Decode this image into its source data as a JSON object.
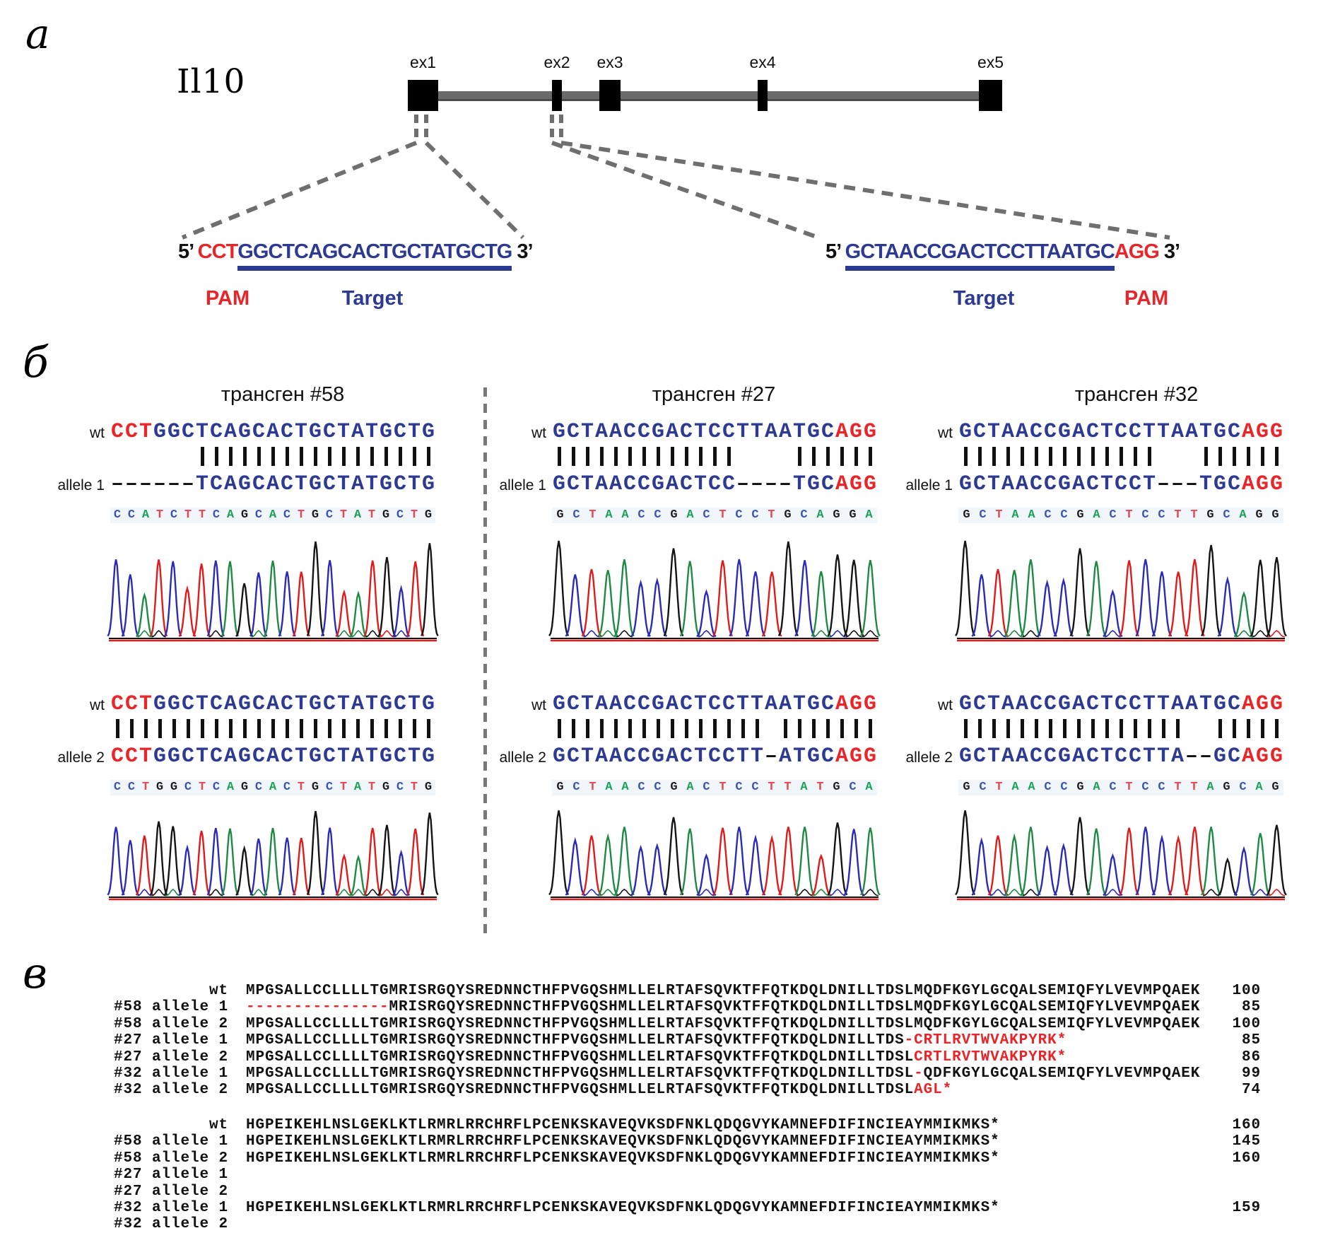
{
  "colors": {
    "seq_blue": "#2d3a92",
    "seq_red": "#e8262a",
    "protein_red": "#e8262a",
    "gene_line_gray": "#6a6a6a",
    "dash_gray": "#6f6f6f",
    "base_letter_colors": {
      "A": "#1ba158",
      "C": "#3b55b5",
      "G": "#1d1d1d",
      "T": "#e8474f"
    },
    "trace_colors": {
      "A": "#1f8a44",
      "C": "#2b2bb5",
      "G": "#151515",
      "T": "#e01b1b"
    }
  },
  "panel_a": {
    "label": "а",
    "gene_name": "Il10",
    "exon_labels": [
      "ex1",
      "ex2",
      "ex3",
      "ex4",
      "ex5"
    ],
    "left_site": {
      "five": "5’ ",
      "pam": "CCT",
      "target": "GGCTCAGCACTGCTATGCTG",
      "three": " 3’",
      "pam_label": "PAM",
      "target_label": "Target"
    },
    "right_site": {
      "five": "5’ ",
      "target": "GCTAACCGACTCCTTAATGC",
      "pam": "AGG",
      "three": " 3’",
      "pam_label": "PAM",
      "target_label": "Target"
    }
  },
  "panel_b": {
    "label": "б",
    "columns": [
      {
        "title": "трансген #58",
        "top": {
          "wt_label": "wt",
          "wt_parts": [
            {
              "t": "CCT",
              "c": "red"
            },
            {
              "t": "GGCTCAGCACTGCTATGCTG",
              "c": "blue"
            }
          ],
          "bars": "00000011111111111111111",
          "allele_label": "allele 1",
          "allele_parts": [
            {
              "t": "------",
              "c": "black"
            },
            {
              "t": "TCAGCACTGCTATGCTG",
              "c": "blue"
            }
          ],
          "chromatogram": "CCATCTTCAGCACTGCTATGCTG"
        },
        "bottom": {
          "wt_label": "wt",
          "wt_parts": [
            {
              "t": "CCT",
              "c": "red"
            },
            {
              "t": "GGCTCAGCACTGCTATGCTG",
              "c": "blue"
            }
          ],
          "bars": "11111111111111111111111",
          "allele_label": "allele 2",
          "allele_parts": [
            {
              "t": "CCT",
              "c": "red"
            },
            {
              "t": "GGCTCAGCACTGCTATGCTG",
              "c": "blue"
            }
          ],
          "chromatogram": "CCTGGCTCAGCACTGCTATGCTG"
        }
      },
      {
        "title": "трансген #27",
        "top": {
          "wt_label": "wt",
          "wt_parts": [
            {
              "t": "GCTAACCGACTCCTTAATGC",
              "c": "blue"
            },
            {
              "t": "AGG",
              "c": "red"
            }
          ],
          "bars": "11111111111110000111111",
          "allele_label": "allele 1",
          "allele_parts": [
            {
              "t": "GCTAACCGACTCC",
              "c": "blue"
            },
            {
              "t": "----",
              "c": "black"
            },
            {
              "t": "TGC",
              "c": "blue"
            },
            {
              "t": "AGG",
              "c": "red"
            }
          ],
          "chromatogram": "GCTAACCGACTCCTGCAGGA"
        },
        "bottom": {
          "wt_label": "wt",
          "wt_parts": [
            {
              "t": "GCTAACCGACTCCTTAATGC",
              "c": "blue"
            },
            {
              "t": "AGG",
              "c": "red"
            }
          ],
          "bars": "11111111111111101111111",
          "allele_label": "allele 2",
          "allele_parts": [
            {
              "t": "GCTAACCGACTCCTT",
              "c": "blue"
            },
            {
              "t": "-",
              "c": "black"
            },
            {
              "t": "ATGC",
              "c": "blue"
            },
            {
              "t": "AGG",
              "c": "red"
            }
          ],
          "chromatogram": "GCTAACCGACTCCTTATGCA"
        }
      },
      {
        "title": "трансген #32",
        "top": {
          "wt_label": "wt",
          "wt_parts": [
            {
              "t": "GCTAACCGACTCCTTAATGC",
              "c": "blue"
            },
            {
              "t": "AGG",
              "c": "red"
            }
          ],
          "bars": "11111111111111000111111",
          "allele_label": "allele 1",
          "allele_parts": [
            {
              "t": "GCTAACCGACTCCT",
              "c": "blue"
            },
            {
              "t": "---",
              "c": "black"
            },
            {
              "t": "TGC",
              "c": "blue"
            },
            {
              "t": "AGG",
              "c": "red"
            }
          ],
          "chromatogram": "GCTAACCGACTCCTTGCAGG"
        },
        "bottom": {
          "wt_label": "wt",
          "wt_parts": [
            {
              "t": "GCTAACCGACTCCTTAATGC",
              "c": "blue"
            },
            {
              "t": "AGG",
              "c": "red"
            }
          ],
          "bars": "11111111111111110011111",
          "allele_label": "allele 2",
          "allele_parts": [
            {
              "t": "GCTAACCGACTCCTTA",
              "c": "blue"
            },
            {
              "t": "--",
              "c": "black"
            },
            {
              "t": "GC",
              "c": "blue"
            },
            {
              "t": "AGG",
              "c": "red"
            }
          ],
          "chromatogram": "GCTAACCGACTCCTTAGCAG"
        }
      }
    ]
  },
  "panel_c": {
    "label": "в",
    "block1": [
      {
        "label": "wt",
        "parts": [
          {
            "t": "MPGSALLCCLLLLTGMRISRGQYSREDNNCTHFPVGQSHMLLELRTAFSQVKTFFQTKDQLDNILLTDSLMQDFKGYLGCQALSEMIQFYLVEVMPQAEK",
            "c": "k"
          }
        ],
        "num": "100"
      },
      {
        "label": "#58 allele 1",
        "parts": [
          {
            "t": "---------------",
            "c": "r"
          },
          {
            "t": "MRISRGQYSREDNNCTHFPVGQSHMLLELRTAFSQVKTFFQTKDQLDNILLTDSLMQDFKGYLGCQALSEMIQFYLVEVMPQAEK",
            "c": "k"
          }
        ],
        "num": "85"
      },
      {
        "label": "#58 allele 2",
        "parts": [
          {
            "t": "MPGSALLCCLLLLTGMRISRGQYSREDNNCTHFPVGQSHMLLELRTAFSQVKTFFQTKDQLDNILLTDSLMQDFKGYLGCQALSEMIQFYLVEVMPQAEK",
            "c": "k"
          }
        ],
        "num": "100"
      },
      {
        "label": "#27 allele 1",
        "parts": [
          {
            "t": "MPGSALLCCLLLLTGMRISRGQYSREDNNCTHFPVGQSHMLLELRTAFSQVKTFFQTKDQLDNILLTDS",
            "c": "k"
          },
          {
            "t": "-CRTLRVTWVAKPYRK*",
            "c": "r"
          }
        ],
        "num": "85"
      },
      {
        "label": "#27 allele 2",
        "parts": [
          {
            "t": "MPGSALLCCLLLLTGMRISRGQYSREDNNCTHFPVGQSHMLLELRTAFSQVKTFFQTKDQLDNILLTDSL",
            "c": "k"
          },
          {
            "t": "CRTLRVTWVAKPYRK*",
            "c": "r"
          }
        ],
        "num": "86"
      },
      {
        "label": "#32 allele 1",
        "parts": [
          {
            "t": "MPGSALLCCLLLLTGMRISRGQYSREDNNCTHFPVGQSHMLLELRTAFSQVKTFFQTKDQLDNILLTDSL",
            "c": "k"
          },
          {
            "t": "-",
            "c": "r"
          },
          {
            "t": "QDFKGYLGCQALSEMIQFYLVEVMPQAEK",
            "c": "k"
          }
        ],
        "num": "99"
      },
      {
        "label": "#32 allele 2",
        "parts": [
          {
            "t": "MPGSALLCCLLLLTGMRISRGQYSREDNNCTHFPVGQSHMLLELRTAFSQVKTFFQTKDQLDNILLTDSL",
            "c": "k"
          },
          {
            "t": "AGL*",
            "c": "r"
          }
        ],
        "num": "74"
      }
    ],
    "block2": [
      {
        "label": "wt",
        "parts": [
          {
            "t": "HGPEIKEHLNSLGEKLKTLRMRLRRCHRFLPCENKSKAVEQVKSDFNKLQDQGVYKAMNEFDIFINCIEAYMMIKMKS*",
            "c": "k"
          }
        ],
        "num": "160"
      },
      {
        "label": "#58 allele 1",
        "parts": [
          {
            "t": "HGPEIKEHLNSLGEKLKTLRMRLRRCHRFLPCENKSKAVEQVKSDFNKLQDQGVYKAMNEFDIFINCIEAYMMIKMKS*",
            "c": "k"
          }
        ],
        "num": "145"
      },
      {
        "label": "#58 allele 2",
        "parts": [
          {
            "t": "HGPEIKEHLNSLGEKLKTLRMRLRRCHRFLPCENKSKAVEQVKSDFNKLQDQGVYKAMNEFDIFINCIEAYMMIKMKS*",
            "c": "k"
          }
        ],
        "num": "160"
      },
      {
        "label": "#27 allele 1",
        "parts": [],
        "num": ""
      },
      {
        "label": "#27 allele 2",
        "parts": [],
        "num": ""
      },
      {
        "label": "#32 allele 1",
        "parts": [
          {
            "t": "HGPEIKEHLNSLGEKLKTLRMRLRRCHRFLPCENKSKAVEQVKSDFNKLQDQGVYKAMNEFDIFINCIEAYMMIKMKS*",
            "c": "k"
          }
        ],
        "num": "159"
      },
      {
        "label": "#32 allele 2",
        "parts": [],
        "num": ""
      }
    ]
  }
}
